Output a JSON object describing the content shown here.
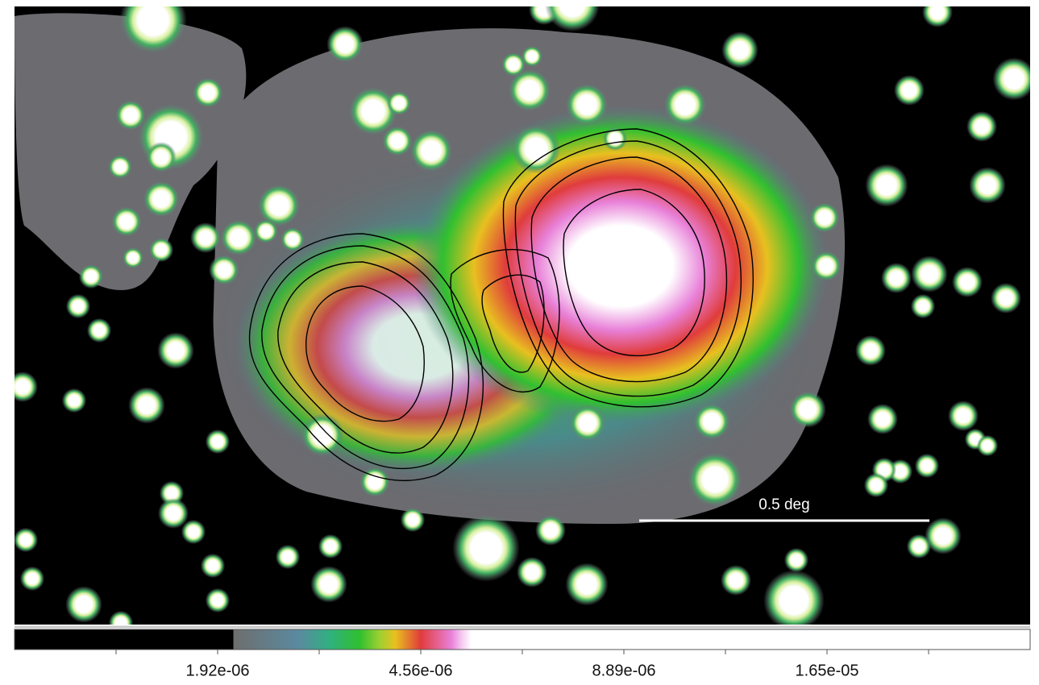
{
  "image": {
    "scale_bar": {
      "label": "0.5 deg"
    }
  },
  "colorbar": {
    "tick_labels": [
      "1.92e-06",
      "4.56e-06",
      "8.89e-06",
      "1.65e-05"
    ]
  }
}
